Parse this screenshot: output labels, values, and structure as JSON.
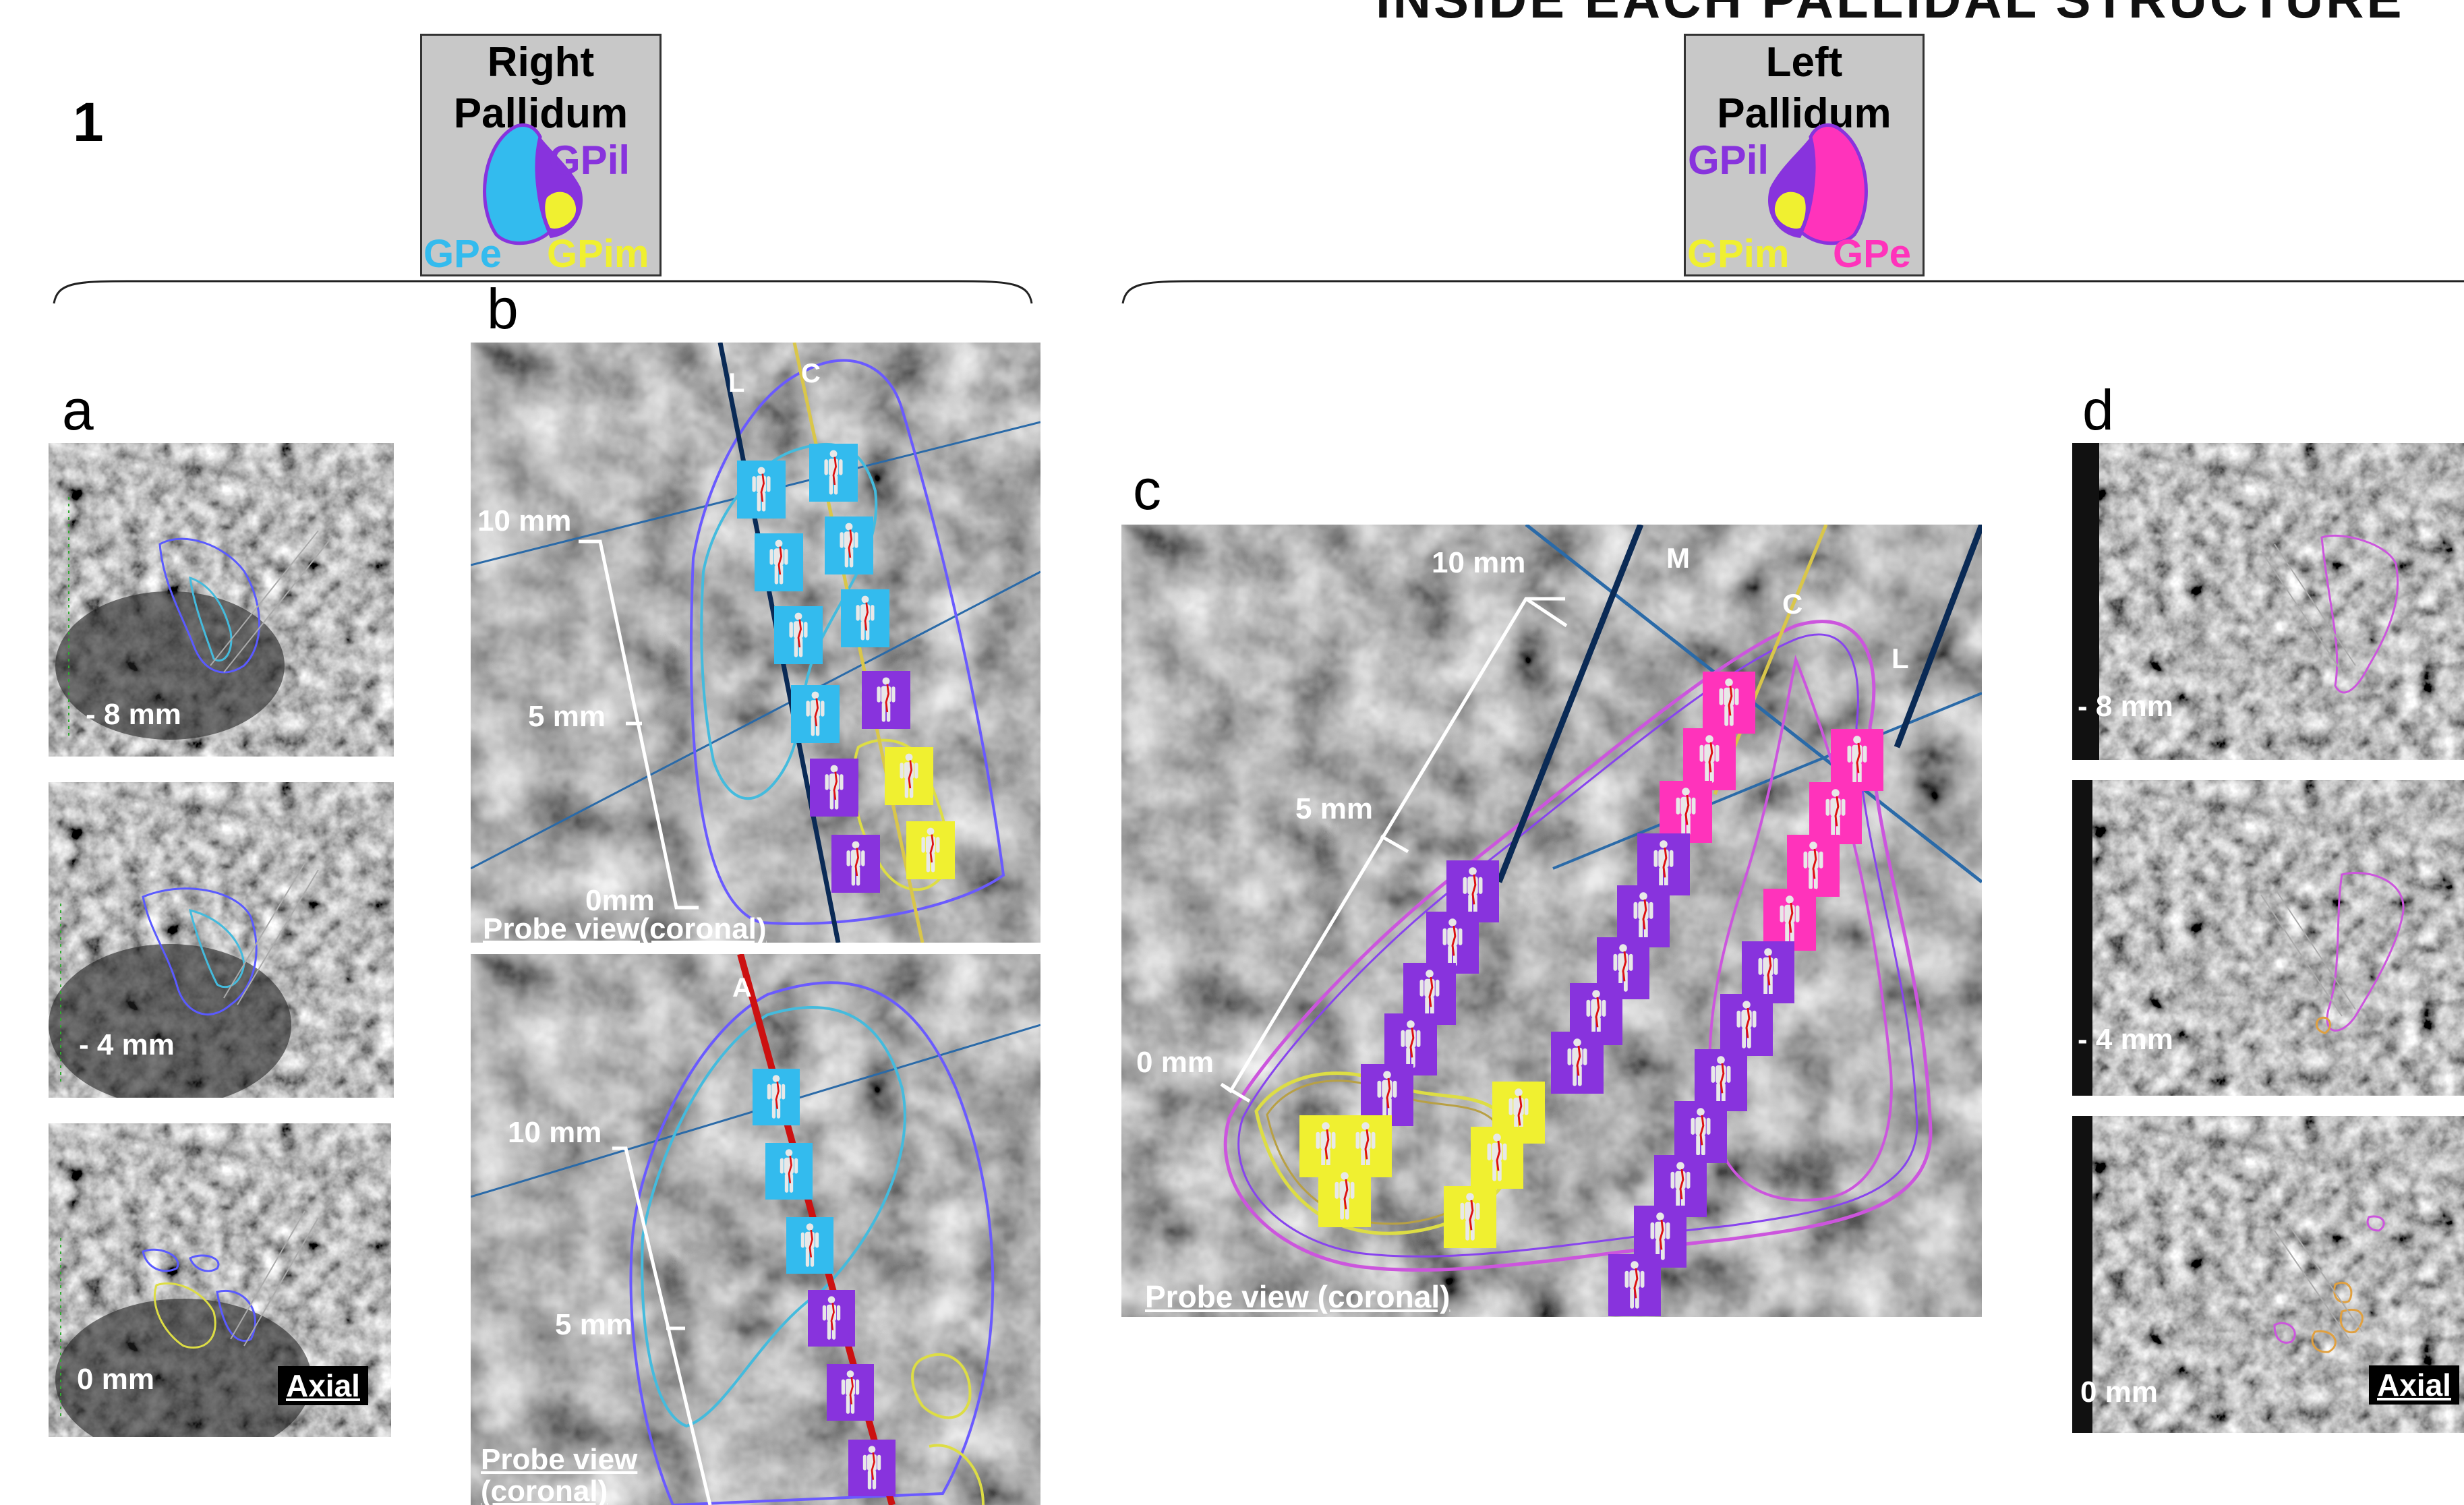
{
  "header": {
    "figure_number": "1",
    "top_right_title": "INSIDE EACH PALLIDAL STRUCTURE"
  },
  "legend_right": {
    "title_line1": "Right",
    "title_line2": "Pallidum",
    "labels": {
      "gpil": "GPil",
      "gpe": "GPe",
      "gpim": "GPim"
    }
  },
  "legend_left": {
    "title_line1": "Left",
    "title_line2": "Pallidum",
    "labels": {
      "gpil": "GPil",
      "gpe": "GPe",
      "gpim": "GPim"
    }
  },
  "panels": {
    "a": {
      "letter": "a",
      "slices": [
        {
          "depth": "- 8 mm"
        },
        {
          "depth": "- 4 mm"
        },
        {
          "depth": "0 mm"
        }
      ],
      "axial_label": "Axial"
    },
    "b": {
      "letter": "b",
      "top": {
        "track_labels": [
          "L",
          "C"
        ],
        "scale": {
          "top": "10 mm",
          "mid": "5 mm",
          "bottom": "0mm"
        },
        "caption": "Probe view(coronal)"
      },
      "bottom": {
        "track_labels": [
          "A"
        ],
        "scale": {
          "top": "10 mm",
          "mid": "5 mm"
        },
        "caption_line1": "Probe view",
        "caption_line2": "(coronal)"
      }
    },
    "c": {
      "letter": "c",
      "track_labels": [
        "M",
        "C",
        "L"
      ],
      "scale": {
        "top": "10 mm",
        "mid": "5 mm",
        "bottom": "0 mm"
      },
      "caption": "Probe view (coronal)"
    },
    "d": {
      "letter": "d",
      "slices": [
        {
          "depth": "- 8 mm"
        },
        {
          "depth": "- 4 mm"
        },
        {
          "depth": "0 mm"
        }
      ],
      "axial_label": "Axial"
    }
  },
  "colors": {
    "gpe_right": "#33bbee",
    "gpe_left": "#ff33bb",
    "gpil": "#8833dd",
    "gpim": "#f0f030",
    "legend_bg": "#c8c8c8",
    "contour_blue": "#5a5aff",
    "contour_cyan": "#44bbdd",
    "contour_yellow": "#dddd44",
    "contour_magenta": "#cc55dd",
    "contour_orange": "#e0a040"
  }
}
